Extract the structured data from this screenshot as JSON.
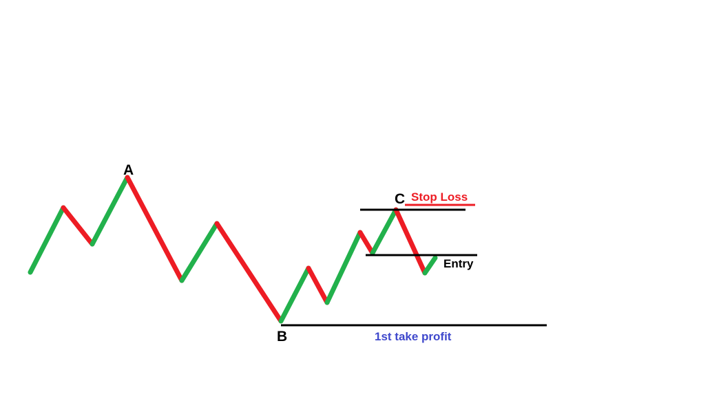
{
  "labels": {
    "point_a": "A",
    "point_b": "B",
    "point_c": "C",
    "stop_loss": "Stop Loss",
    "entry": "Entry",
    "take_profit": "1st take profit"
  },
  "colors": {
    "up_leg": "#22b14c",
    "down_leg": "#ed1c24",
    "level_line": "#000000",
    "stop_loss_text": "#ed1c24",
    "take_profit_text": "#3f48cc",
    "entry_text": "#000000",
    "point_text": "#000000"
  }
}
